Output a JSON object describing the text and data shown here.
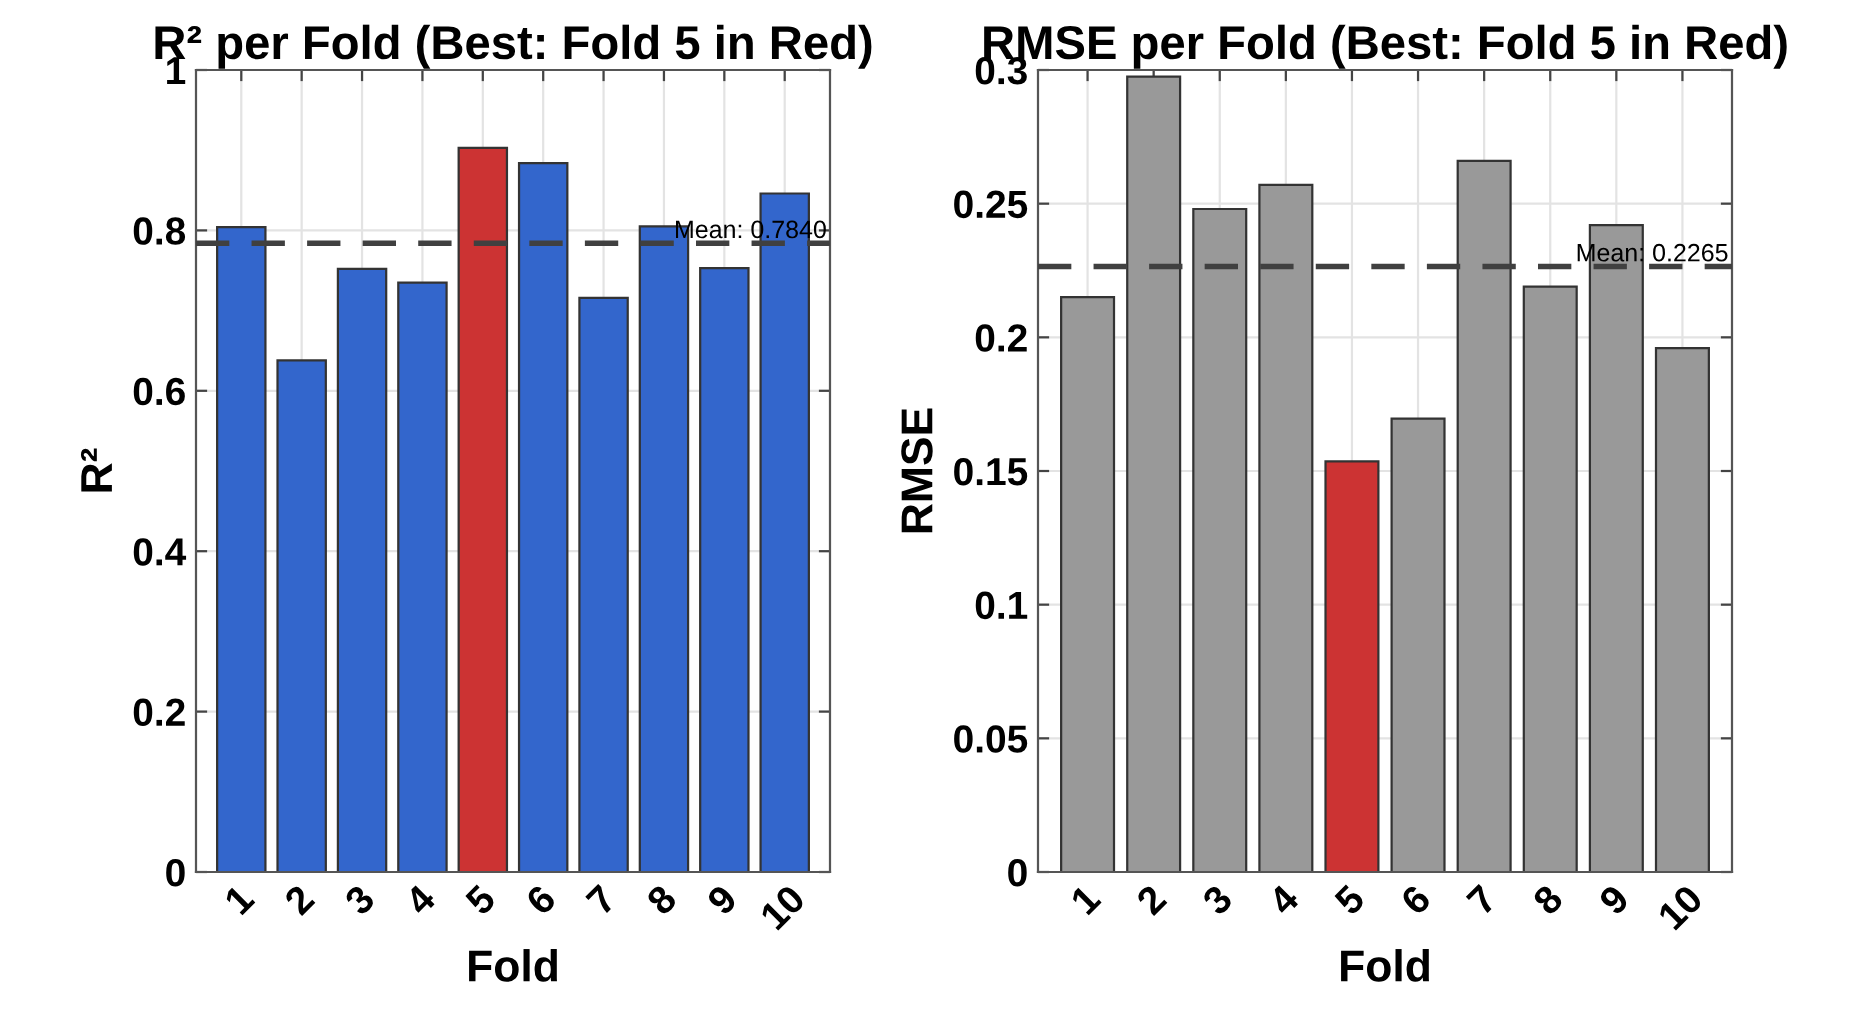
{
  "chart_data": [
    {
      "type": "bar",
      "title": "R² per Fold (Best: Fold 5 in Red)",
      "xlabel": "Fold",
      "ylabel": "R²",
      "categories": [
        "1",
        "2",
        "3",
        "4",
        "5",
        "6",
        "7",
        "8",
        "9",
        "10"
      ],
      "values": [
        0.804,
        0.638,
        0.752,
        0.735,
        0.903,
        0.884,
        0.716,
        0.805,
        0.753,
        0.846
      ],
      "colors": [
        "#3366cc",
        "#3366cc",
        "#3366cc",
        "#3366cc",
        "#cc3333",
        "#3366cc",
        "#3366cc",
        "#3366cc",
        "#3366cc",
        "#3366cc"
      ],
      "ylim": [
        0,
        1
      ],
      "yticks": [
        0,
        0.2,
        0.4,
        0.6,
        0.8,
        1
      ],
      "grid": true,
      "ref_lines": [
        {
          "axis": "y",
          "value": 0.784,
          "label": "Mean: 0.7840",
          "color": "#404040",
          "line_style": "dashed"
        }
      ]
    },
    {
      "type": "bar",
      "title": "RMSE per Fold (Best: Fold 5 in Red)",
      "xlabel": "Fold",
      "ylabel": "RMSE",
      "categories": [
        "1",
        "2",
        "3",
        "4",
        "5",
        "6",
        "7",
        "8",
        "9",
        "10"
      ],
      "values": [
        0.215,
        0.2975,
        0.248,
        0.257,
        0.1536,
        0.1696,
        0.266,
        0.219,
        0.242,
        0.196
      ],
      "colors": [
        "#999999",
        "#999999",
        "#999999",
        "#999999",
        "#cc3333",
        "#999999",
        "#999999",
        "#999999",
        "#999999",
        "#999999"
      ],
      "ylim": [
        0,
        0.3
      ],
      "yticks": [
        0,
        0.05,
        0.1,
        0.15,
        0.2,
        0.25,
        0.3
      ],
      "grid": true,
      "ref_lines": [
        {
          "axis": "y",
          "value": 0.2265,
          "label": "Mean: 0.2265",
          "color": "#404040",
          "line_style": "dashed"
        }
      ]
    }
  ]
}
